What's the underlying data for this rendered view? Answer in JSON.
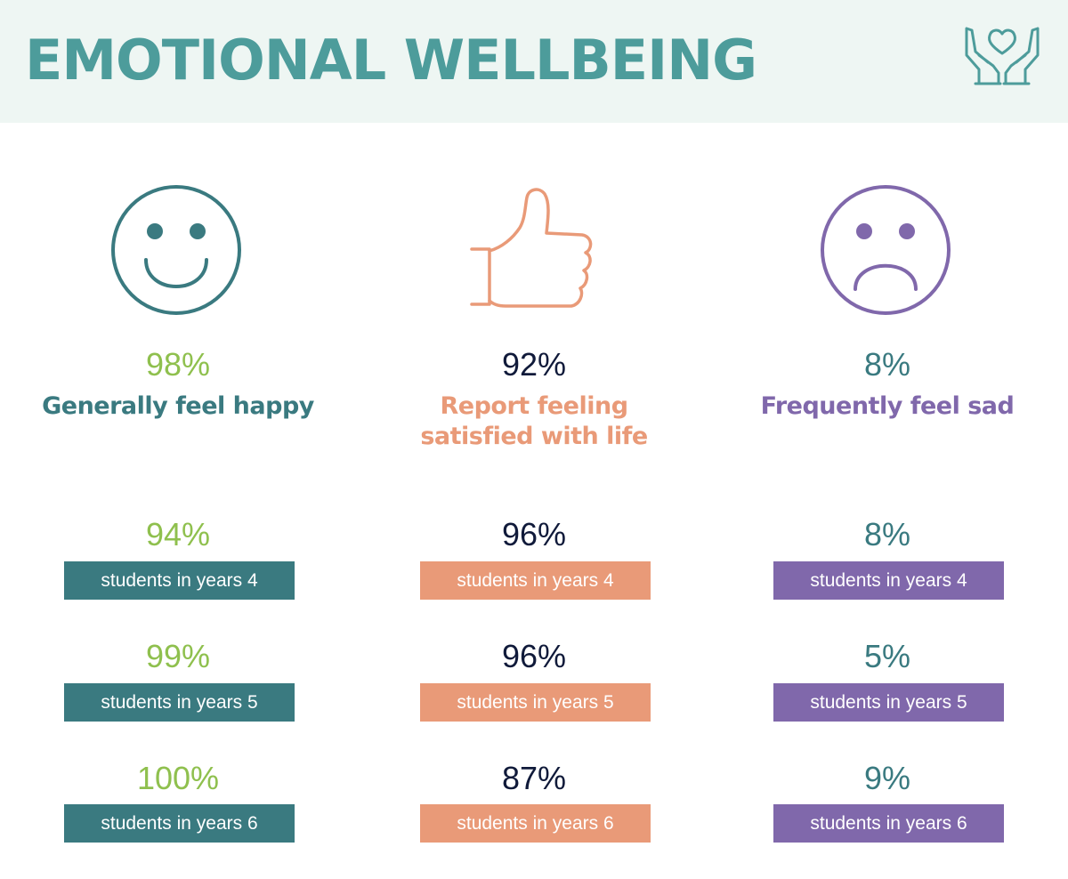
{
  "header": {
    "title": "EMOTIONAL WELLBEING",
    "icon": "heart-in-hands-icon"
  },
  "colors": {
    "header_bg": "#eef6f3",
    "title": "#4d9c9b",
    "teal": "#3a7a80",
    "green": "#8fc04e",
    "salmon": "#e99a78",
    "navy": "#101a3a",
    "purple": "#8068ab"
  },
  "columns": [
    {
      "icon": "smiley-face-icon",
      "percent": "98%",
      "caption": "Generally feel happy",
      "rows": [
        {
          "percent": "94%",
          "label": "students in years 4"
        },
        {
          "percent": "99%",
          "label": "students in years 5"
        },
        {
          "percent": "100%",
          "label": "students in years 6"
        }
      ]
    },
    {
      "icon": "thumbs-up-icon",
      "percent": "92%",
      "caption": "Report feeling satisfied with life",
      "rows": [
        {
          "percent": "96%",
          "label": "students in years 4"
        },
        {
          "percent": "96%",
          "label": "students in years 5"
        },
        {
          "percent": "87%",
          "label": "students in years 6"
        }
      ]
    },
    {
      "icon": "sad-face-icon",
      "percent": "8%",
      "caption": "Frequently feel sad",
      "rows": [
        {
          "percent": "8%",
          "label": "students in years 4"
        },
        {
          "percent": "5%",
          "label": "students in years 5"
        },
        {
          "percent": "9%",
          "label": "students in years 6"
        }
      ]
    }
  ]
}
